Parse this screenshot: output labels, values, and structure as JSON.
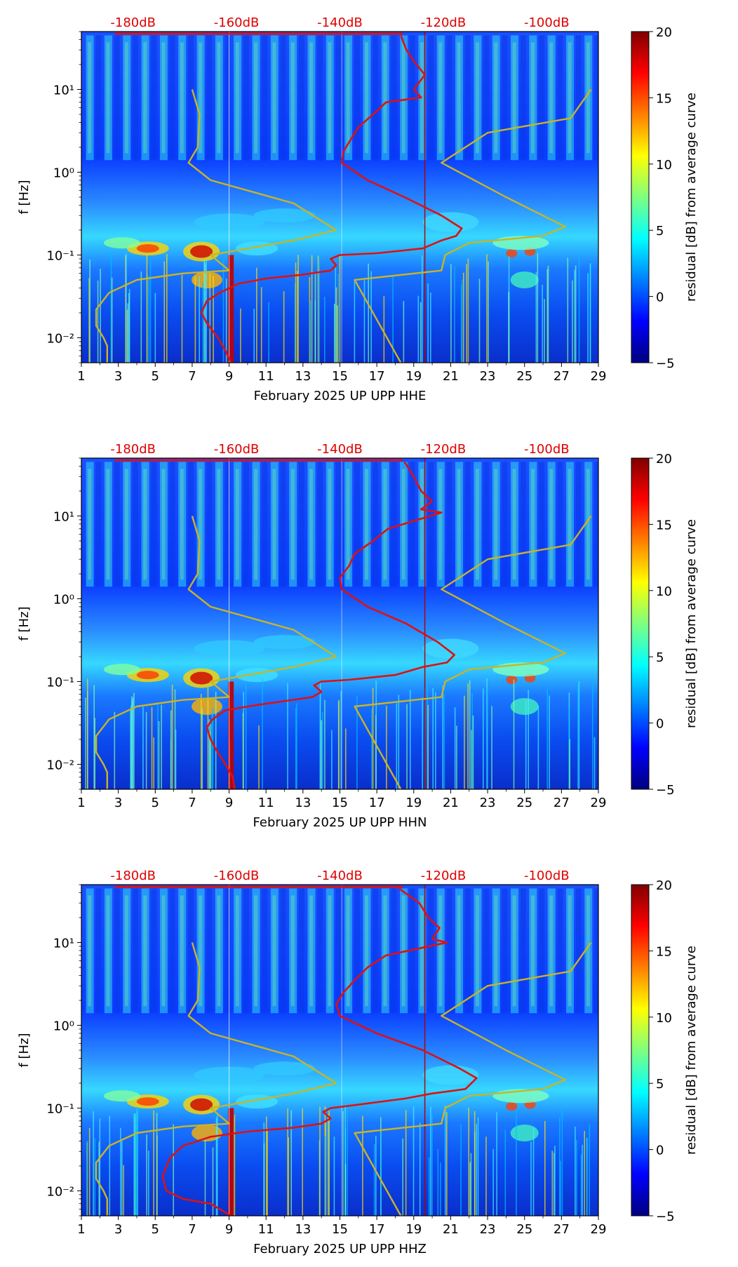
{
  "colors": {
    "db_label": "#e00000",
    "axis": "#000000",
    "mean_curve": "#dd1111",
    "model_curve": "#c8b428"
  },
  "colormap": [
    "#00007f",
    "#0000ff",
    "#007fff",
    "#00ffff",
    "#7fff7f",
    "#ffff00",
    "#ff7f00",
    "#ff0000",
    "#7f0000"
  ],
  "chart_data": [
    {
      "type": "heatmap",
      "title": "",
      "xlabel": "February 2025 UP UPP  HHE",
      "ylabel": "f [Hz]",
      "x_ticks": [
        "1",
        "3",
        "5",
        "7",
        "9",
        "11",
        "13",
        "15",
        "17",
        "19",
        "21",
        "23",
        "25",
        "27",
        "29"
      ],
      "xlim": [
        1,
        29
      ],
      "y_ticks": [
        "10⁻²",
        "10⁻¹",
        "10⁰",
        "10¹"
      ],
      "ylim": [
        0.005,
        50
      ],
      "yscale": "log",
      "top_axis_labels": [
        "-180dB",
        "-160dB",
        "-140dB",
        "-120dB",
        "-100dB"
      ],
      "top_axis_positions_day": [
        3.8,
        9.4,
        15.0,
        20.6,
        26.2
      ],
      "colorbar": {
        "label": "residual [dB] from average curve",
        "ticks": [
          "20",
          "15",
          "10",
          "5",
          "0",
          "−5"
        ],
        "range": [
          -5,
          20
        ]
      },
      "series": [
        {
          "name": "mean PSD",
          "points_day_freq": [
            [
              18.3,
              45
            ],
            [
              18.6,
              30
            ],
            [
              19.0,
              22
            ],
            [
              19.6,
              15
            ],
            [
              19.0,
              10
            ],
            [
              19.4,
              8
            ],
            [
              17.5,
              7
            ],
            [
              16.8,
              5
            ],
            [
              16.0,
              3.5
            ],
            [
              15.6,
              2.5
            ],
            [
              15.2,
              1.8
            ],
            [
              15.1,
              1.3
            ],
            [
              16.5,
              0.8
            ],
            [
              18.5,
              0.5
            ],
            [
              20.5,
              0.3
            ],
            [
              21.6,
              0.21
            ],
            [
              21.3,
              0.17
            ],
            [
              20.5,
              0.15
            ],
            [
              19.5,
              0.12
            ],
            [
              17.0,
              0.105
            ],
            [
              15.0,
              0.1
            ],
            [
              14.5,
              0.09
            ],
            [
              14.8,
              0.075
            ],
            [
              14.5,
              0.065
            ],
            [
              13.0,
              0.058
            ],
            [
              11.0,
              0.052
            ],
            [
              9.5,
              0.045
            ],
            [
              8.5,
              0.035
            ],
            [
              7.8,
              0.028
            ],
            [
              7.5,
              0.02
            ],
            [
              7.8,
              0.015
            ],
            [
              8.4,
              0.01
            ],
            [
              8.8,
              0.007
            ],
            [
              9.1,
              0.005
            ]
          ]
        },
        {
          "name": "low model",
          "points_day_freq": [
            [
              7.0,
              10
            ],
            [
              7.4,
              5
            ],
            [
              7.3,
              2
            ],
            [
              6.8,
              1.3
            ],
            [
              8.0,
              0.8
            ],
            [
              12.5,
              0.42
            ],
            [
              14.8,
              0.2
            ],
            [
              12.5,
              0.15
            ],
            [
              8.0,
              0.1
            ],
            [
              9.0,
              0.065
            ],
            [
              6.5,
              0.06
            ],
            [
              4.0,
              0.05
            ],
            [
              2.5,
              0.035
            ],
            [
              1.8,
              0.022
            ],
            [
              1.8,
              0.014
            ],
            [
              2.2,
              0.01
            ],
            [
              2.4,
              0.008
            ],
            [
              2.4,
              0.005
            ]
          ]
        },
        {
          "name": "high model",
          "points_day_freq": [
            [
              28.6,
              10
            ],
            [
              27.5,
              4.5
            ],
            [
              23.0,
              3.0
            ],
            [
              20.5,
              1.3
            ],
            [
              24.0,
              0.5
            ],
            [
              27.2,
              0.22
            ],
            [
              26.0,
              0.17
            ],
            [
              22.0,
              0.14
            ],
            [
              20.7,
              0.1
            ],
            [
              20.5,
              0.065
            ],
            [
              15.8,
              0.05
            ],
            [
              18.3,
              0.005
            ]
          ]
        }
      ]
    },
    {
      "type": "heatmap",
      "title": "",
      "xlabel": "February 2025 UP UPP  HHN",
      "ylabel": "f [Hz]",
      "x_ticks": [
        "1",
        "3",
        "5",
        "7",
        "9",
        "11",
        "13",
        "15",
        "17",
        "19",
        "21",
        "23",
        "25",
        "27",
        "29"
      ],
      "xlim": [
        1,
        29
      ],
      "y_ticks": [
        "10⁻²",
        "10⁻¹",
        "10⁰",
        "10¹"
      ],
      "ylim": [
        0.005,
        50
      ],
      "yscale": "log",
      "top_axis_labels": [
        "-180dB",
        "-160dB",
        "-140dB",
        "-120dB",
        "-100dB"
      ],
      "top_axis_positions_day": [
        3.8,
        9.4,
        15.0,
        20.6,
        26.2
      ],
      "colorbar": {
        "label": "residual [dB] from average curve",
        "ticks": [
          "20",
          "15",
          "10",
          "5",
          "0",
          "−5"
        ],
        "range": [
          -5,
          20
        ]
      },
      "series": [
        {
          "name": "mean PSD",
          "points_day_freq": [
            [
              18.5,
              45
            ],
            [
              19.0,
              30
            ],
            [
              19.4,
              20
            ],
            [
              20.0,
              15
            ],
            [
              19.4,
              12
            ],
            [
              20.5,
              11
            ],
            [
              17.6,
              7
            ],
            [
              16.8,
              5
            ],
            [
              15.8,
              3.5
            ],
            [
              15.5,
              2.5
            ],
            [
              15.0,
              1.8
            ],
            [
              15.1,
              1.3
            ],
            [
              16.5,
              0.8
            ],
            [
              18.6,
              0.5
            ],
            [
              20.3,
              0.3
            ],
            [
              21.2,
              0.21
            ],
            [
              20.8,
              0.17
            ],
            [
              19.5,
              0.15
            ],
            [
              18.0,
              0.12
            ],
            [
              15.5,
              0.105
            ],
            [
              14.0,
              0.1
            ],
            [
              13.6,
              0.09
            ],
            [
              14.0,
              0.075
            ],
            [
              13.5,
              0.065
            ],
            [
              12.0,
              0.058
            ],
            [
              10.5,
              0.052
            ],
            [
              8.8,
              0.045
            ],
            [
              8.1,
              0.035
            ],
            [
              7.8,
              0.028
            ],
            [
              8.0,
              0.02
            ],
            [
              8.3,
              0.015
            ],
            [
              8.8,
              0.01
            ],
            [
              9.2,
              0.007
            ],
            [
              9.3,
              0.005
            ]
          ]
        },
        {
          "name": "low model",
          "points_day_freq": [
            [
              7.0,
              10
            ],
            [
              7.4,
              5
            ],
            [
              7.3,
              2
            ],
            [
              6.8,
              1.3
            ],
            [
              8.0,
              0.8
            ],
            [
              12.5,
              0.42
            ],
            [
              14.8,
              0.2
            ],
            [
              12.5,
              0.15
            ],
            [
              8.0,
              0.1
            ],
            [
              9.0,
              0.065
            ],
            [
              6.5,
              0.06
            ],
            [
              4.0,
              0.05
            ],
            [
              2.5,
              0.035
            ],
            [
              1.8,
              0.022
            ],
            [
              1.8,
              0.014
            ],
            [
              2.2,
              0.01
            ],
            [
              2.4,
              0.008
            ],
            [
              2.4,
              0.005
            ]
          ]
        },
        {
          "name": "high model",
          "points_day_freq": [
            [
              28.6,
              10
            ],
            [
              27.5,
              4.5
            ],
            [
              23.0,
              3.0
            ],
            [
              20.5,
              1.3
            ],
            [
              24.0,
              0.5
            ],
            [
              27.2,
              0.22
            ],
            [
              26.0,
              0.17
            ],
            [
              22.0,
              0.14
            ],
            [
              20.7,
              0.1
            ],
            [
              20.5,
              0.065
            ],
            [
              15.8,
              0.05
            ],
            [
              18.3,
              0.005
            ]
          ]
        }
      ]
    },
    {
      "type": "heatmap",
      "title": "",
      "xlabel": "February 2025 UP UPP  HHZ",
      "ylabel": "f [Hz]",
      "x_ticks": [
        "1",
        "3",
        "5",
        "7",
        "9",
        "11",
        "13",
        "15",
        "17",
        "19",
        "21",
        "23",
        "25",
        "27",
        "29"
      ],
      "xlim": [
        1,
        29
      ],
      "y_ticks": [
        "10⁻²",
        "10⁻¹",
        "10⁰",
        "10¹"
      ],
      "ylim": [
        0.005,
        50
      ],
      "yscale": "log",
      "top_axis_labels": [
        "-180dB",
        "-160dB",
        "-140dB",
        "-120dB",
        "-100dB"
      ],
      "top_axis_positions_day": [
        3.8,
        9.4,
        15.0,
        20.6,
        26.2
      ],
      "colorbar": {
        "label": "residual [dB] from average curve",
        "ticks": [
          "20",
          "15",
          "10",
          "5",
          "0",
          "−5"
        ],
        "range": [
          -5,
          20
        ]
      },
      "series": [
        {
          "name": "mean PSD",
          "points_day_freq": [
            [
              18.2,
              45
            ],
            [
              19.3,
              30
            ],
            [
              19.8,
              20
            ],
            [
              20.4,
              15
            ],
            [
              20.0,
              11
            ],
            [
              20.8,
              10
            ],
            [
              17.5,
              7
            ],
            [
              16.5,
              5
            ],
            [
              15.8,
              3.5
            ],
            [
              15.2,
              2.5
            ],
            [
              14.8,
              1.8
            ],
            [
              15.0,
              1.3
            ],
            [
              17.0,
              0.8
            ],
            [
              19.5,
              0.5
            ],
            [
              21.5,
              0.3
            ],
            [
              22.4,
              0.23
            ],
            [
              21.8,
              0.17
            ],
            [
              20.0,
              0.15
            ],
            [
              18.5,
              0.13
            ],
            [
              16.0,
              0.11
            ],
            [
              14.5,
              0.1
            ],
            [
              14.1,
              0.09
            ],
            [
              14.5,
              0.075
            ],
            [
              14.0,
              0.065
            ],
            [
              12.5,
              0.058
            ],
            [
              10.0,
              0.052
            ],
            [
              8.0,
              0.045
            ],
            [
              6.5,
              0.035
            ],
            [
              5.8,
              0.025
            ],
            [
              5.4,
              0.015
            ],
            [
              5.6,
              0.01
            ],
            [
              6.5,
              0.008
            ],
            [
              8.0,
              0.007
            ],
            [
              9.1,
              0.005
            ]
          ]
        },
        {
          "name": "low model",
          "points_day_freq": [
            [
              7.0,
              10
            ],
            [
              7.4,
              5
            ],
            [
              7.3,
              2
            ],
            [
              6.8,
              1.3
            ],
            [
              8.0,
              0.8
            ],
            [
              12.5,
              0.42
            ],
            [
              14.8,
              0.2
            ],
            [
              12.5,
              0.15
            ],
            [
              8.0,
              0.1
            ],
            [
              9.0,
              0.065
            ],
            [
              6.5,
              0.06
            ],
            [
              4.0,
              0.05
            ],
            [
              2.5,
              0.035
            ],
            [
              1.8,
              0.022
            ],
            [
              1.8,
              0.014
            ],
            [
              2.2,
              0.01
            ],
            [
              2.4,
              0.008
            ],
            [
              2.4,
              0.005
            ]
          ]
        },
        {
          "name": "high model",
          "points_day_freq": [
            [
              28.6,
              10
            ],
            [
              27.5,
              4.5
            ],
            [
              23.0,
              3.0
            ],
            [
              20.5,
              1.3
            ],
            [
              24.0,
              0.5
            ],
            [
              27.2,
              0.22
            ],
            [
              26.0,
              0.17
            ],
            [
              22.0,
              0.14
            ],
            [
              20.7,
              0.1
            ],
            [
              20.5,
              0.065
            ],
            [
              15.8,
              0.05
            ],
            [
              18.3,
              0.005
            ]
          ]
        }
      ]
    }
  ]
}
